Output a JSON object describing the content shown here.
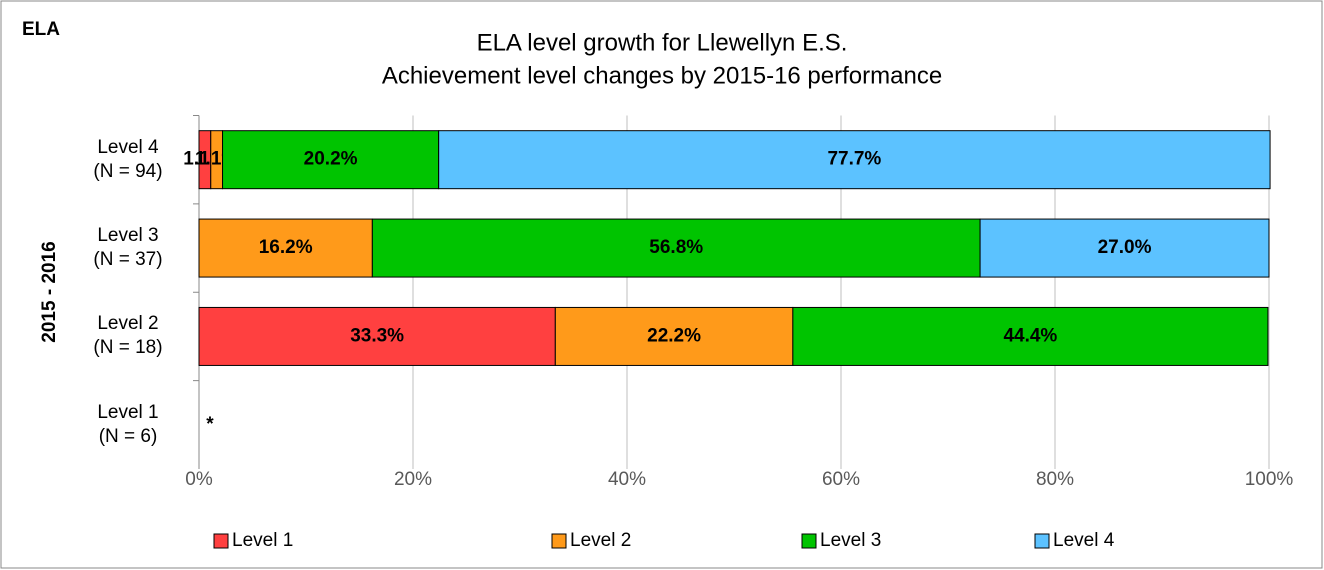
{
  "chart_data": {
    "type": "stacked_barh",
    "corner_label": "ELA",
    "title": "ELA level growth for Llewellyn E.S.",
    "subtitle": "Achievement level changes by 2015-16 performance",
    "y_label": "2015 - 2016",
    "categories": [
      "Level  4\n(N = 94)",
      "Level  3\n(N = 37)",
      "Level  2\n(N = 18)",
      "Level  1\n(N = 6)"
    ],
    "annotation": "*",
    "series": [
      {
        "name": "Level 1",
        "color": "#ff4040",
        "values": [
          1.1,
          null,
          33.3,
          null
        ],
        "value_labels": [
          "1.1%",
          null,
          "33.3%",
          null
        ]
      },
      {
        "name": "Level 2",
        "color": "#ff9a1a",
        "values": [
          1.1,
          16.2,
          22.2,
          null
        ],
        "value_labels": [
          "1.1%",
          "16.2%",
          "22.2%",
          null
        ]
      },
      {
        "name": "Level 3",
        "color": "#00c400",
        "values": [
          20.2,
          56.8,
          44.4,
          null
        ],
        "value_labels": [
          "20.2%",
          "56.8%",
          "44.4%",
          null
        ]
      },
      {
        "name": "Level 4",
        "color": "#5cc2ff",
        "values": [
          77.7,
          27.0,
          null,
          null
        ],
        "value_labels": [
          "77.7%",
          "27.0%",
          null,
          null
        ]
      }
    ],
    "xlim": [
      0,
      100
    ],
    "xticks": [
      {
        "value": 0,
        "label": "0%"
      },
      {
        "value": 20,
        "label": "20%"
      },
      {
        "value": 40,
        "label": "40%"
      },
      {
        "value": 60,
        "label": "60%"
      },
      {
        "value": 80,
        "label": "80%"
      },
      {
        "value": 100,
        "label": "100%"
      }
    ],
    "grid": true,
    "legend": "bottom"
  }
}
